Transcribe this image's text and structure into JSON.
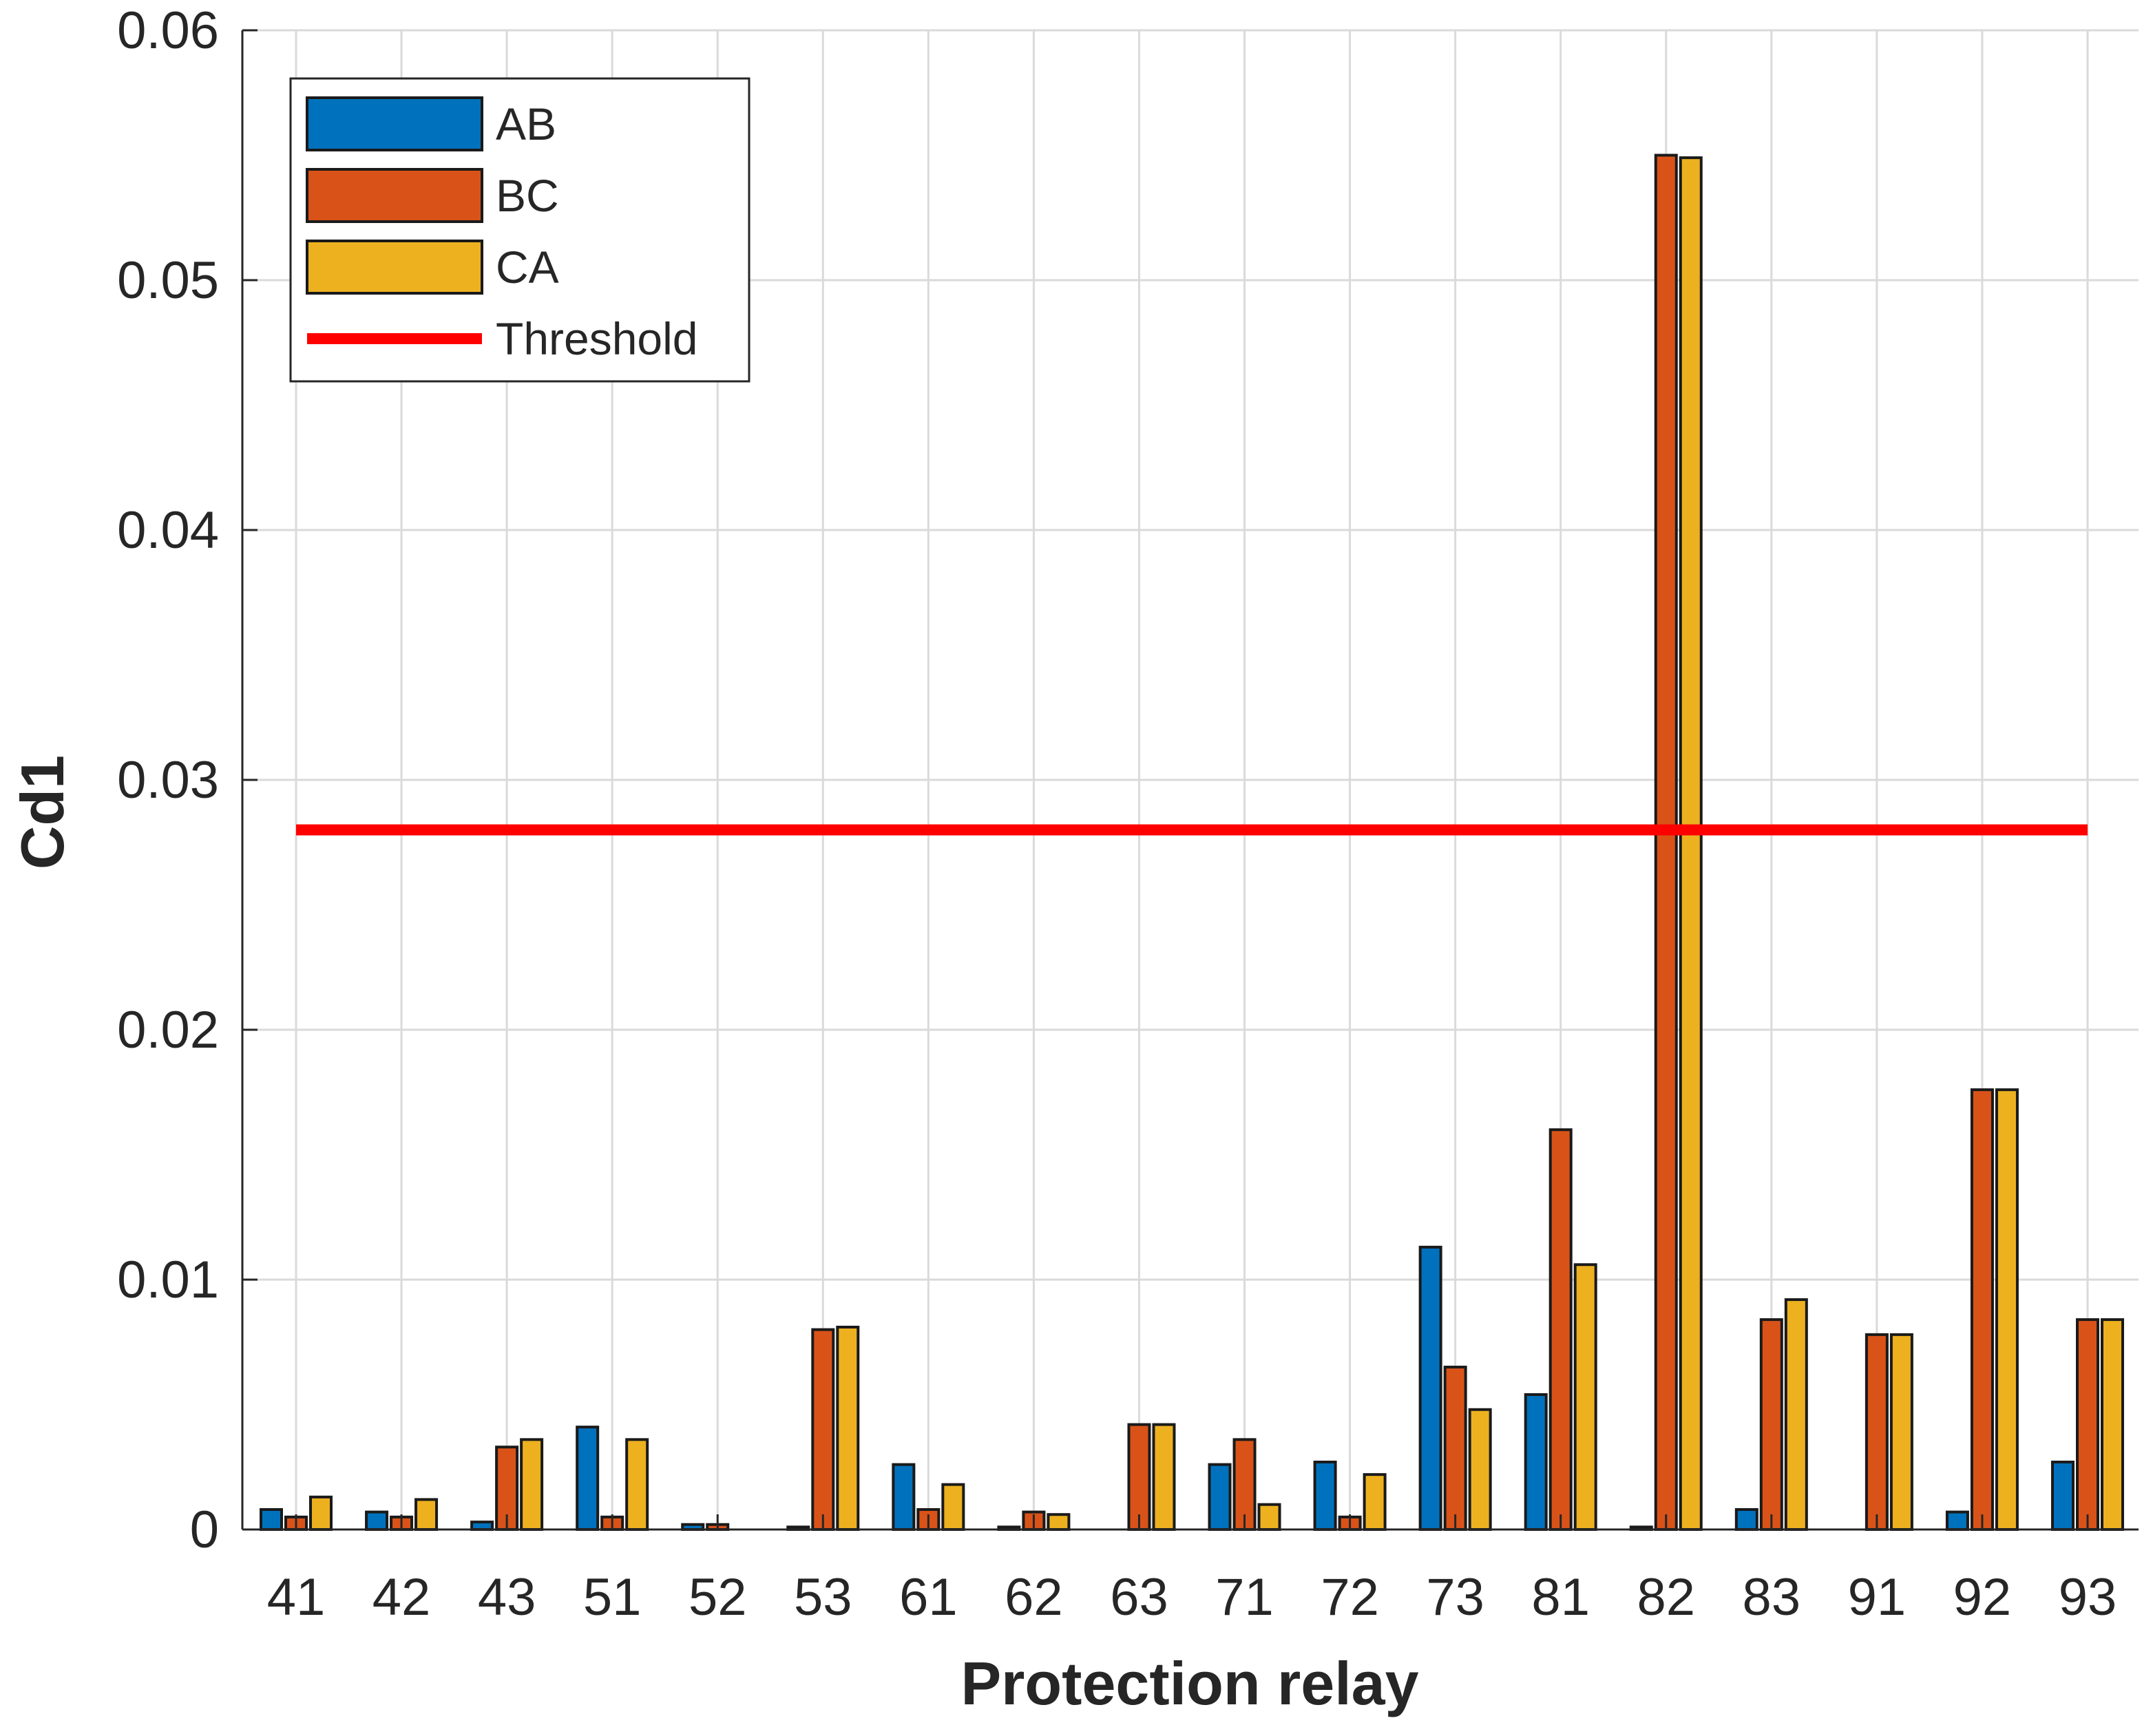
{
  "chart_data": {
    "type": "bar",
    "title": "",
    "xlabel": "Protection relay",
    "ylabel": "Cd1",
    "ylim": [
      0,
      0.06
    ],
    "yticks": [
      0,
      0.01,
      0.02,
      0.03,
      0.04,
      0.05,
      0.06
    ],
    "ytick_labels": [
      "0",
      "0.01",
      "0.02",
      "0.03",
      "0.04",
      "0.05",
      "0.06"
    ],
    "grid": true,
    "legend_position": "top-left",
    "categories": [
      "41",
      "42",
      "43",
      "51",
      "52",
      "53",
      "61",
      "62",
      "63",
      "71",
      "72",
      "73",
      "81",
      "82",
      "83",
      "91",
      "92",
      "93"
    ],
    "series": [
      {
        "name": "AB",
        "color": "#0072BD",
        "values": [
          0.0008,
          0.0007,
          0.0003,
          0.0041,
          0.0002,
          0.0001,
          0.0026,
          0.0001,
          0.0,
          0.0026,
          0.0027,
          0.0113,
          0.0054,
          0.0001,
          0.0008,
          0.0,
          0.0007,
          0.0027
        ]
      },
      {
        "name": "BC",
        "color": "#D95319",
        "values": [
          0.0005,
          0.0005,
          0.0033,
          0.0005,
          0.0002,
          0.008,
          0.0008,
          0.0007,
          0.0042,
          0.0036,
          0.0005,
          0.0065,
          0.016,
          0.055,
          0.0084,
          0.0078,
          0.0176,
          0.0084
        ]
      },
      {
        "name": "CA",
        "color": "#EDB120",
        "values": [
          0.0013,
          0.0012,
          0.0036,
          0.0036,
          0.0,
          0.0081,
          0.0018,
          0.0006,
          0.0042,
          0.001,
          0.0022,
          0.0048,
          0.0106,
          0.0549,
          0.0092,
          0.0078,
          0.0176,
          0.0084
        ]
      }
    ],
    "threshold": {
      "name": "Threshold",
      "value": 0.028,
      "color": "#FF0000"
    }
  }
}
